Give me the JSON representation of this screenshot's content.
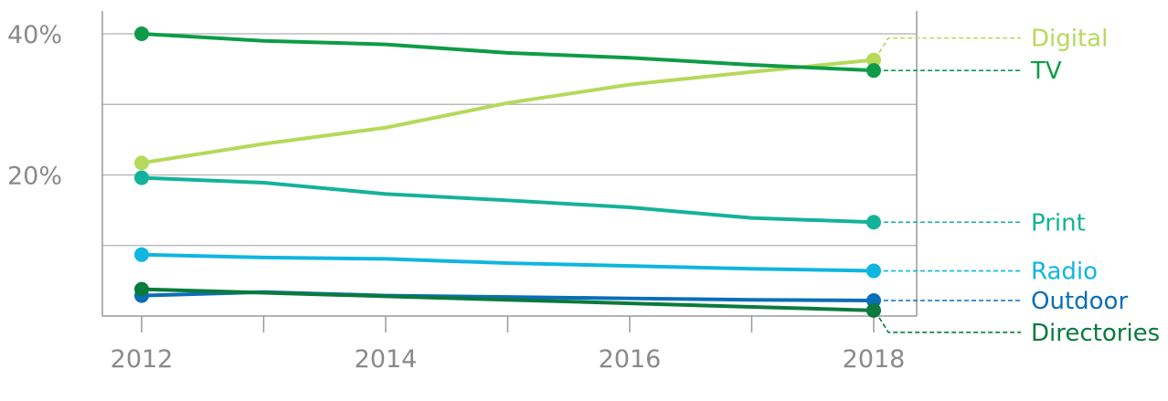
{
  "chart_data": {
    "type": "line",
    "x": [
      2012,
      2013,
      2014,
      2015,
      2016,
      2017,
      2018
    ],
    "xticks": [
      "2012",
      "2014",
      "2016",
      "2018"
    ],
    "xlim": [
      2011.6,
      2018.4
    ],
    "yticks": [
      "40%",
      "20%"
    ],
    "ytick_values": [
      40,
      20
    ],
    "ylim": [
      0,
      40
    ],
    "grid_values": [
      10,
      20,
      30,
      40
    ],
    "grid": true,
    "legend": "right, leader lines to series end points",
    "series": [
      {
        "name": "Digital",
        "color": "#b5d95a",
        "values": [
          21.7,
          24.4,
          26.7,
          30.2,
          32.8,
          34.6,
          36.3
        ]
      },
      {
        "name": "TV",
        "color": "#0e9b48",
        "values": [
          40.0,
          39.0,
          38.5,
          37.3,
          36.6,
          35.6,
          34.8
        ]
      },
      {
        "name": "Print",
        "color": "#14b29a",
        "values": [
          19.6,
          18.9,
          17.3,
          16.4,
          15.4,
          13.9,
          13.3
        ]
      },
      {
        "name": "Radio",
        "color": "#10b5e0",
        "values": [
          8.7,
          8.3,
          8.1,
          7.5,
          7.1,
          6.7,
          6.4
        ]
      },
      {
        "name": "Outdoor",
        "color": "#0b6eb8",
        "values": [
          2.9,
          3.4,
          2.9,
          2.7,
          2.5,
          2.3,
          2.2
        ]
      },
      {
        "name": "Directories",
        "color": "#0a7a3d",
        "values": [
          3.8,
          3.3,
          2.8,
          2.3,
          1.8,
          1.3,
          0.8
        ]
      }
    ],
    "labels": [
      {
        "series": "Digital",
        "text": "Digital",
        "color": "#b5d95a",
        "label_y_value": 39.4
      },
      {
        "series": "TV",
        "text": "TV",
        "color": "#0e9b48",
        "label_y_value": 34.8
      },
      {
        "series": "Print",
        "text": "Print",
        "color": "#14b29a",
        "label_y_value": 13.3
      },
      {
        "series": "Radio",
        "text": "Radio",
        "color": "#10b5e0",
        "label_y_value": 6.4
      },
      {
        "series": "Outdoor",
        "text": "Outdoor",
        "color": "#0b6eb8",
        "label_y_value": 2.2
      },
      {
        "series": "Directories",
        "text": "Directories",
        "color": "#0a7a3d",
        "label_y_value": -2.3
      }
    ]
  }
}
